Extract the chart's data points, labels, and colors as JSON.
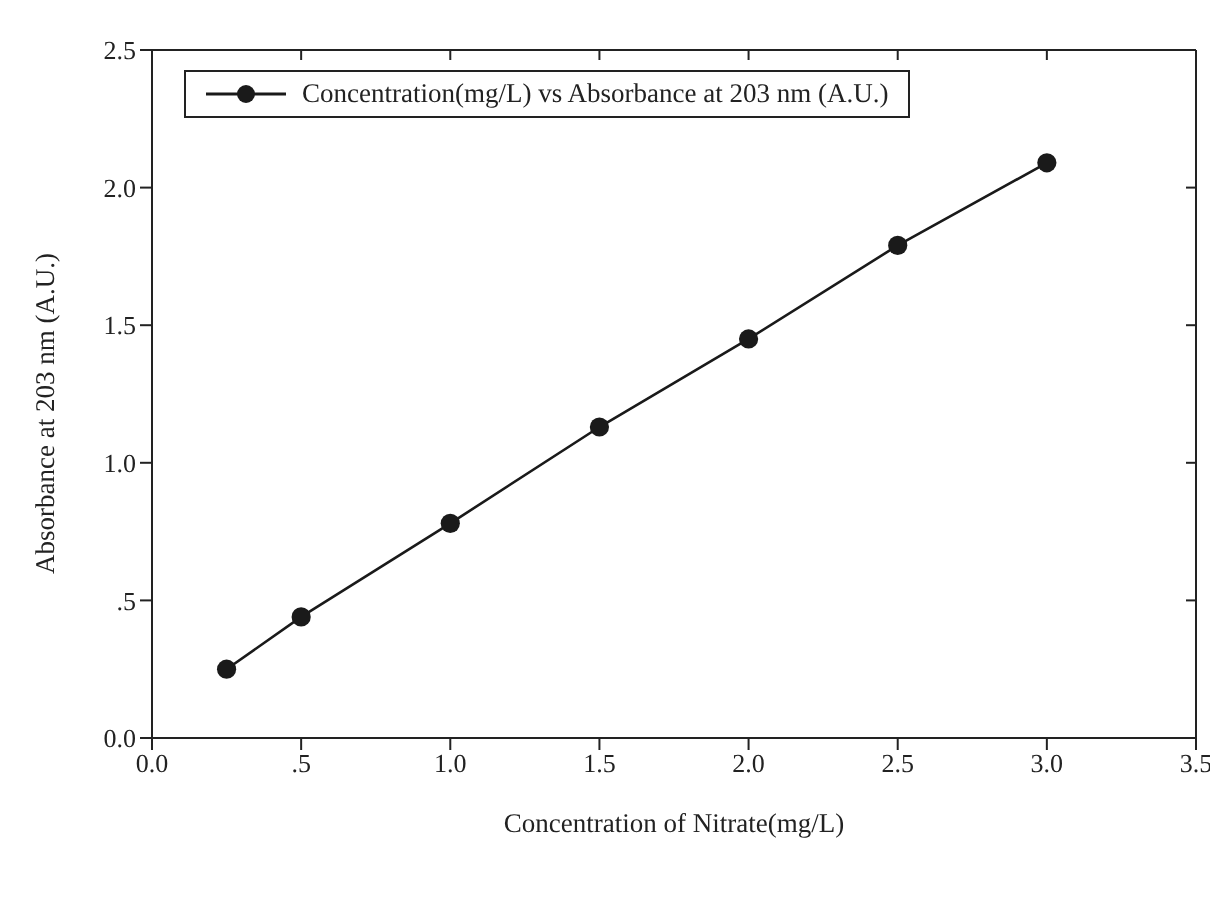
{
  "chart_data": {
    "type": "line",
    "xlabel": "Concentration of Nitrate(mg/L)",
    "ylabel": "Absorbance at 203 nm (A.U.)",
    "x": [
      0.25,
      0.5,
      1.0,
      1.5,
      2.0,
      2.5,
      3.0
    ],
    "series": [
      {
        "name": "Concentration(mg/L) vs Absorbance at 203 nm (A.U.)",
        "color": "#1a1a1a",
        "values": [
          0.25,
          0.44,
          0.78,
          1.13,
          1.45,
          1.79,
          2.09
        ]
      }
    ],
    "xlim": [
      0,
      3.5
    ],
    "xticks": [
      {
        "value": 0,
        "label": "0.0"
      },
      {
        "value": 0.5,
        "label": ".5"
      },
      {
        "value": 1,
        "label": "1.0"
      },
      {
        "value": 1.5,
        "label": "1.5"
      },
      {
        "value": 2,
        "label": "2.0"
      },
      {
        "value": 2.5,
        "label": "2.5"
      },
      {
        "value": 3,
        "label": "3.0"
      },
      {
        "value": 3.5,
        "label": "3.5"
      }
    ],
    "ylim": [
      0,
      2.5
    ],
    "yticks": [
      {
        "value": 0,
        "label": "0.0"
      },
      {
        "value": 0.5,
        "label": ".5"
      },
      {
        "value": 1,
        "label": "1.0"
      },
      {
        "value": 1.5,
        "label": "1.5"
      },
      {
        "value": 2,
        "label": "2.0"
      },
      {
        "value": 2.5,
        "label": "2.5"
      }
    ],
    "grid": false,
    "legend": "top left",
    "marker": "circle",
    "line_style": "solid"
  }
}
